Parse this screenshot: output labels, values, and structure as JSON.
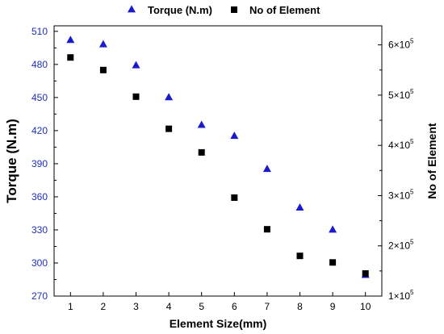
{
  "chart_data": {
    "type": "scatter",
    "xlabel": "Element Size(mm)",
    "ylabel_left": "Torque (N.m)",
    "ylabel_right": "No of Element",
    "x_ticks": [
      "1",
      "2",
      "3",
      "4",
      "5",
      "6",
      "7",
      "8",
      "9",
      "10"
    ],
    "xlim": [
      0.5,
      10.5
    ],
    "ylim_left": [
      270,
      515
    ],
    "yticks_left": [
      "270",
      "300",
      "330",
      "360",
      "390",
      "420",
      "450",
      "480",
      "510"
    ],
    "ylim_right": [
      100000,
      638000
    ],
    "yticks_right": [
      {
        "mantissa": "1×10",
        "exp": "5",
        "value": 100000
      },
      {
        "mantissa": "2×10",
        "exp": "5",
        "value": 200000
      },
      {
        "mantissa": "3×10",
        "exp": "5",
        "value": 300000
      },
      {
        "mantissa": "4×10",
        "exp": "5",
        "value": 400000
      },
      {
        "mantissa": "5×10",
        "exp": "5",
        "value": 500000
      },
      {
        "mantissa": "6×10",
        "exp": "5",
        "value": 600000
      }
    ],
    "legend_position": "top",
    "grid": false,
    "series": [
      {
        "name": "Torque (N.m)",
        "axis": "left",
        "marker": "triangle",
        "color": "#1a1acc",
        "x": [
          1,
          2,
          3,
          4,
          5,
          6,
          7,
          8,
          9,
          10
        ],
        "values": [
          502,
          498,
          479,
          450,
          425,
          415,
          385,
          350,
          330,
          289
        ]
      },
      {
        "name": "No of Element",
        "axis": "right",
        "marker": "square",
        "color": "#000000",
        "x": [
          1,
          2,
          3,
          4,
          5,
          6,
          7,
          8,
          9,
          10
        ],
        "values": [
          575000,
          550000,
          497000,
          433000,
          386000,
          296000,
          233000,
          180000,
          167000,
          145000
        ]
      }
    ]
  }
}
